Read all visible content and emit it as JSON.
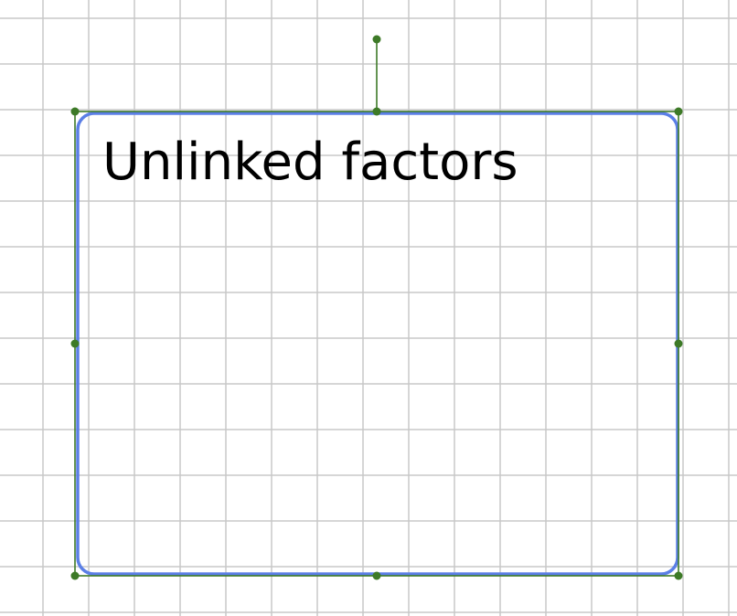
{
  "shape": {
    "label": "Unlinked factors"
  },
  "colors": {
    "grid": "#c8c8c8",
    "shape_border": "#5b7fe6",
    "selection": "#3d7a27",
    "background": "#ffffff",
    "text": "#000000"
  }
}
